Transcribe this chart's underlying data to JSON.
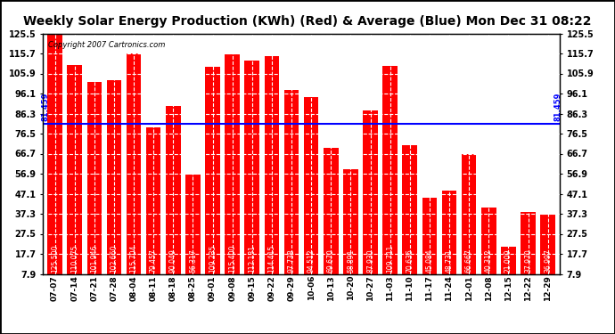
{
  "title": "Weekly Solar Energy Production (KWh) (Red) & Average (Blue) Mon Dec 31 08:22",
  "copyright": "Copyright 2007 Cartronics.com",
  "categories": [
    "07-07",
    "07-14",
    "07-21",
    "07-28",
    "08-04",
    "08-11",
    "08-18",
    "08-25",
    "09-01",
    "09-08",
    "09-15",
    "09-22",
    "09-29",
    "10-06",
    "10-13",
    "10-20",
    "10-27",
    "11-03",
    "11-10",
    "11-17",
    "11-24",
    "12-01",
    "12-08",
    "12-15",
    "12-22",
    "12-29"
  ],
  "values": [
    125.5,
    110.075,
    101.946,
    102.66,
    115.704,
    79.457,
    90.049,
    56.317,
    109.235,
    115.4,
    112.131,
    114.415,
    97.738,
    94.512,
    69.67,
    58.891,
    87.93,
    109.711,
    70.636,
    45.084,
    48.731,
    66.667,
    40.312,
    21.009,
    37.97,
    36.997
  ],
  "average": 81.459,
  "bar_color": "#ff0000",
  "avg_color": "#0000ff",
  "plot_background": "#ffffff",
  "grid_color": "#c8c8c8",
  "text_color": "#000000",
  "ylim_min": 7.9,
  "ylim_max": 125.5,
  "yticks": [
    7.9,
    17.7,
    27.5,
    37.3,
    47.1,
    56.9,
    66.7,
    76.5,
    86.3,
    96.1,
    105.9,
    115.7,
    125.5
  ],
  "title_fontsize": 10,
  "copyright_fontsize": 6,
  "value_fontsize": 5.5,
  "avg_label": "81.459",
  "fig_bg": "#ffffff",
  "bar_width": 0.75
}
